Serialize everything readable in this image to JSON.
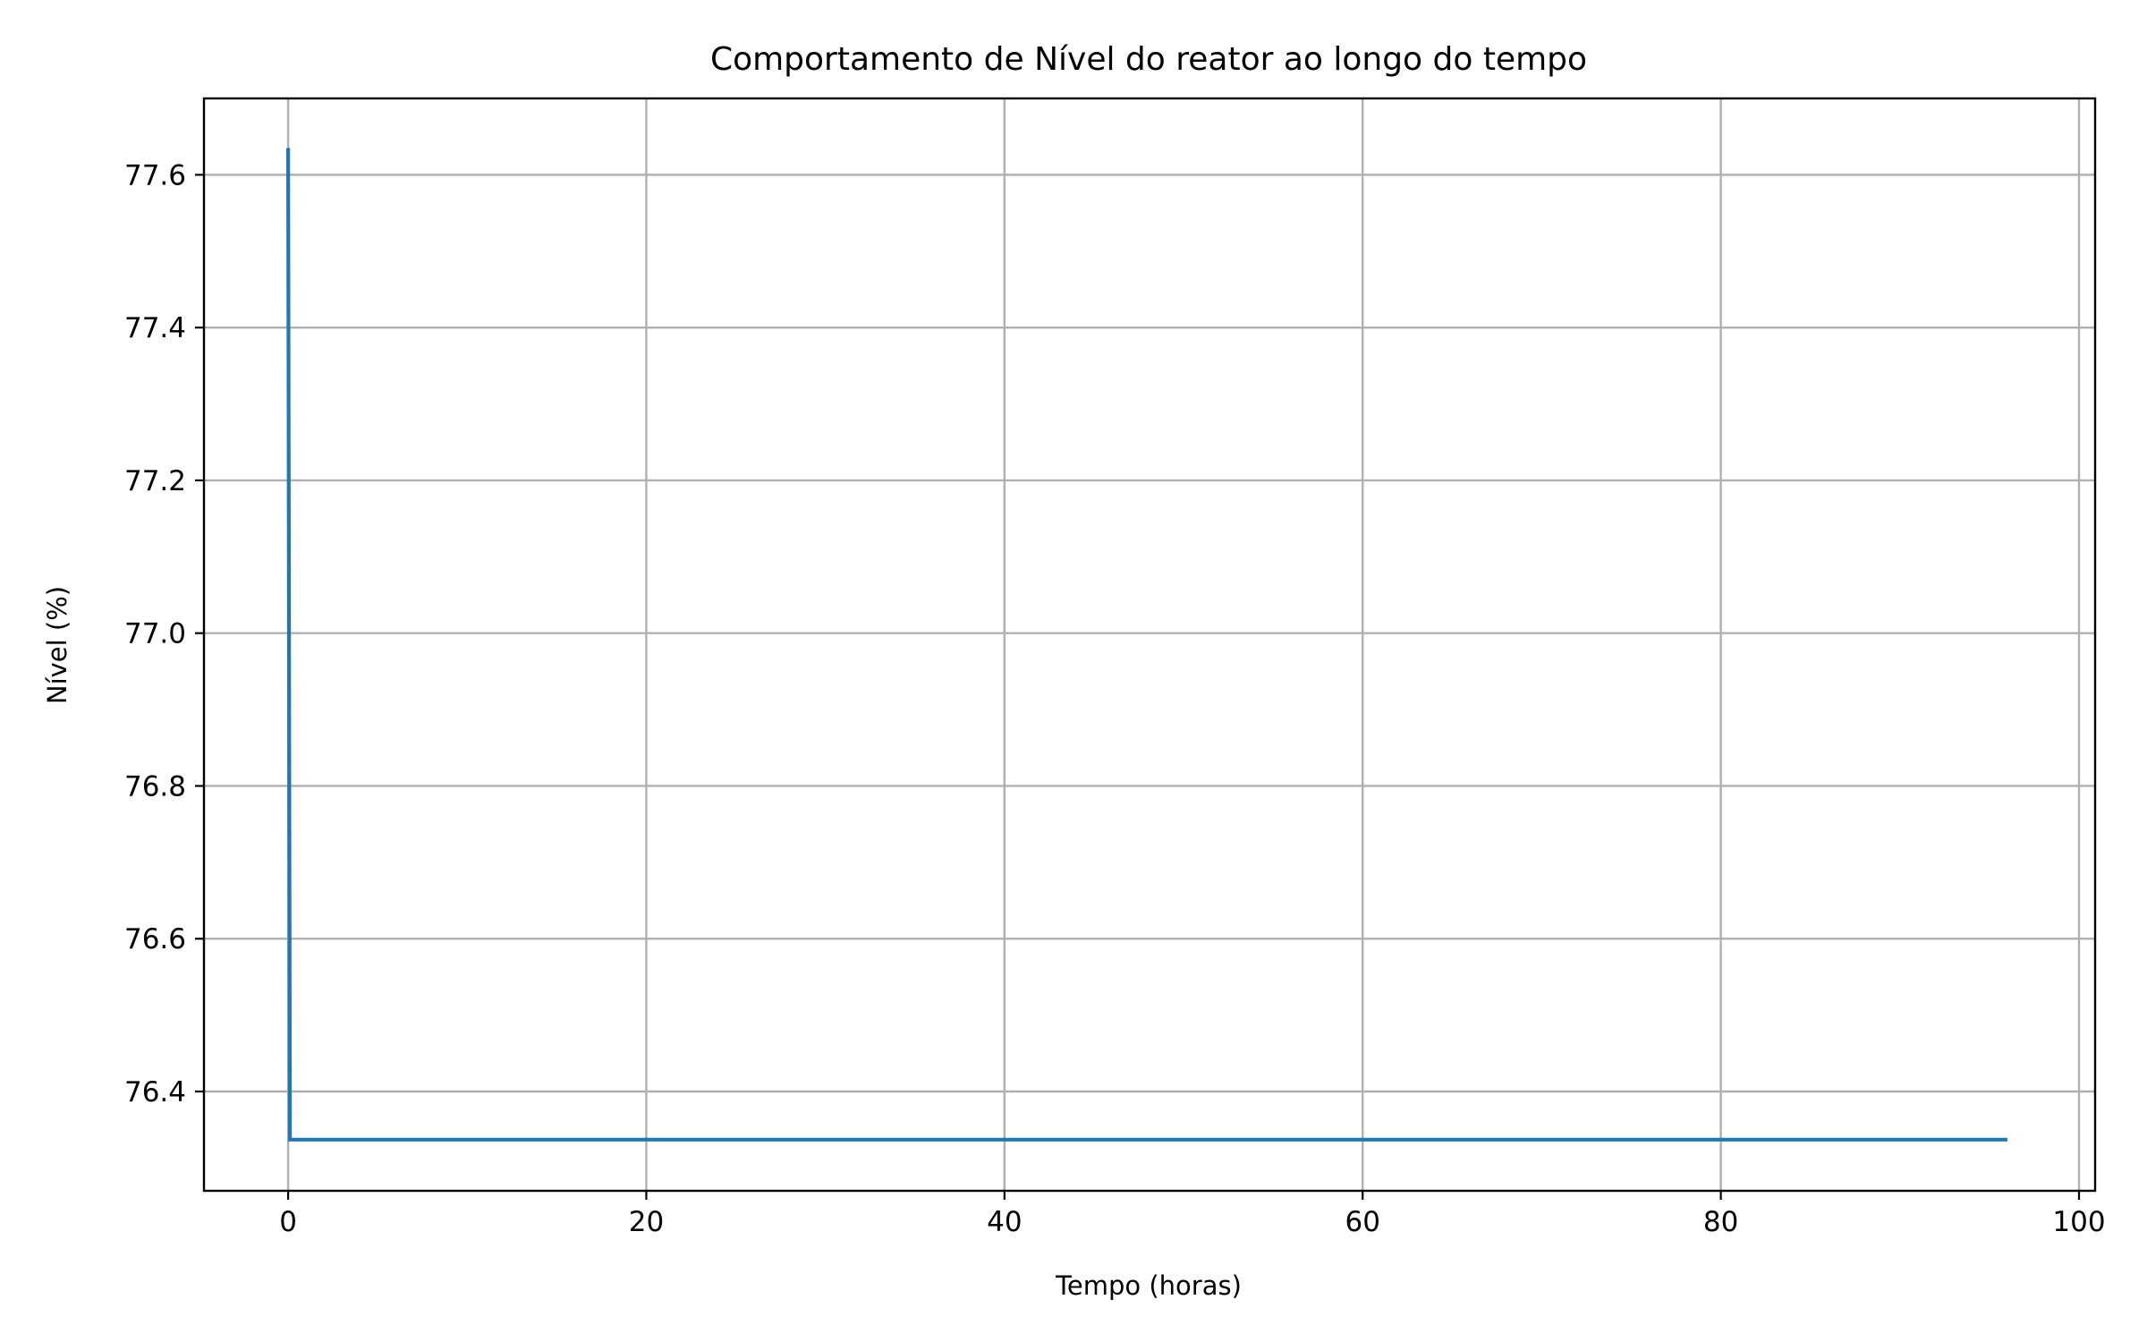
{
  "chart_data": {
    "type": "line",
    "title": "Comportamento de Nível do reator ao longo do tempo",
    "xlabel": "Tempo (horas)",
    "ylabel": "Nível (%)",
    "xlim": [
      -4.7,
      100.9
    ],
    "ylim": [
      76.27,
      77.7
    ],
    "x_ticks": [
      0,
      20,
      40,
      60,
      80,
      100
    ],
    "y_ticks": [
      76.4,
      76.6,
      76.8,
      77.0,
      77.2,
      77.4,
      77.6
    ],
    "x_tick_labels": [
      "0",
      "20",
      "40",
      "60",
      "80",
      "100"
    ],
    "y_tick_labels": [
      "76.4",
      "76.6",
      "76.8",
      "77.0",
      "77.2",
      "77.4",
      "77.6"
    ],
    "grid": true,
    "colors": {
      "series": "#1f77b4",
      "grid": "#b0b0b0",
      "axes": "#000000"
    },
    "series": [
      {
        "x": [
          0.0,
          0.1,
          0.2,
          1,
          10,
          20,
          30,
          40,
          50,
          60,
          70,
          80,
          90,
          96
        ],
        "y": [
          77.635,
          76.337,
          76.337,
          76.337,
          76.337,
          76.337,
          76.337,
          76.337,
          76.337,
          76.337,
          76.337,
          76.337,
          76.337,
          76.337
        ]
      }
    ]
  }
}
